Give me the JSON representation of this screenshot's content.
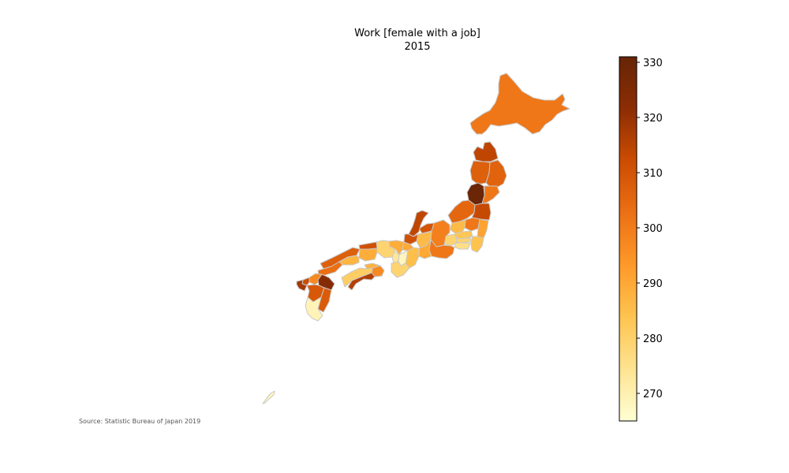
{
  "title": {
    "line1": "Work [female with a job]",
    "line2": "2015"
  },
  "source": "Source: Statistic Bureau of Japan 2019",
  "colorbar": {
    "min": 265,
    "max": 331,
    "ticks": [
      "270",
      "280",
      "290",
      "300",
      "310",
      "320",
      "330"
    ],
    "tick_values": [
      270,
      280,
      290,
      300,
      310,
      320,
      330
    ],
    "colormap": "YlOrBr",
    "colors": [
      "#ffffd4",
      "#fee391",
      "#fec44f",
      "#fe9929",
      "#ec7014",
      "#cc4c02",
      "#8c2d04",
      "#662506"
    ]
  },
  "regions": [
    {
      "name": "Hokkaido",
      "value": 301
    },
    {
      "name": "Aomori",
      "value": 314
    },
    {
      "name": "Iwate",
      "value": 306
    },
    {
      "name": "Akita",
      "value": 307
    },
    {
      "name": "Miyagi",
      "value": 301
    },
    {
      "name": "Yamagata",
      "value": 330
    },
    {
      "name": "Fukushima",
      "value": 313
    },
    {
      "name": "Niigata",
      "value": 305
    },
    {
      "name": "Toyama",
      "value": 310
    },
    {
      "name": "Ishikawa",
      "value": 314
    },
    {
      "name": "Fukui",
      "value": 311
    },
    {
      "name": "Nagano",
      "value": 299
    },
    {
      "name": "Gifu",
      "value": 286
    },
    {
      "name": "Yamanashi",
      "value": 279
    },
    {
      "name": "Tochigi",
      "value": 301
    },
    {
      "name": "Gunma",
      "value": 286
    },
    {
      "name": "Ibaraki",
      "value": 291
    },
    {
      "name": "Saitama",
      "value": 283
    },
    {
      "name": "Tokyo",
      "value": 279
    },
    {
      "name": "Chiba",
      "value": 284
    },
    {
      "name": "Kanagawa",
      "value": 276
    },
    {
      "name": "Shizuoka",
      "value": 301
    },
    {
      "name": "Aichi",
      "value": 290
    },
    {
      "name": "Mie",
      "value": 285
    },
    {
      "name": "Shiga",
      "value": 290
    },
    {
      "name": "Kyoto",
      "value": 289
    },
    {
      "name": "Osaka",
      "value": 273
    },
    {
      "name": "Hyogo",
      "value": 279
    },
    {
      "name": "Nara",
      "value": 268
    },
    {
      "name": "Wakayama",
      "value": 279
    },
    {
      "name": "Tottori",
      "value": 311
    },
    {
      "name": "Shimane",
      "value": 307
    },
    {
      "name": "Okayama",
      "value": 289
    },
    {
      "name": "Hiroshima",
      "value": 287
    },
    {
      "name": "Yamaguchi",
      "value": 303
    },
    {
      "name": "Kagawa",
      "value": 288
    },
    {
      "name": "Tokushima",
      "value": 297
    },
    {
      "name": "Ehime",
      "value": 281
    },
    {
      "name": "Kochi",
      "value": 316
    },
    {
      "name": "Fukuoka",
      "value": 297
    },
    {
      "name": "Saga",
      "value": 312
    },
    {
      "name": "Nagasaki",
      "value": 318
    },
    {
      "name": "Kumamoto",
      "value": 309
    },
    {
      "name": "Oita",
      "value": 323
    },
    {
      "name": "Miyazaki",
      "value": 308
    },
    {
      "name": "Kagoshima",
      "value": 269
    },
    {
      "name": "Okinawa",
      "value": 268
    }
  ]
}
